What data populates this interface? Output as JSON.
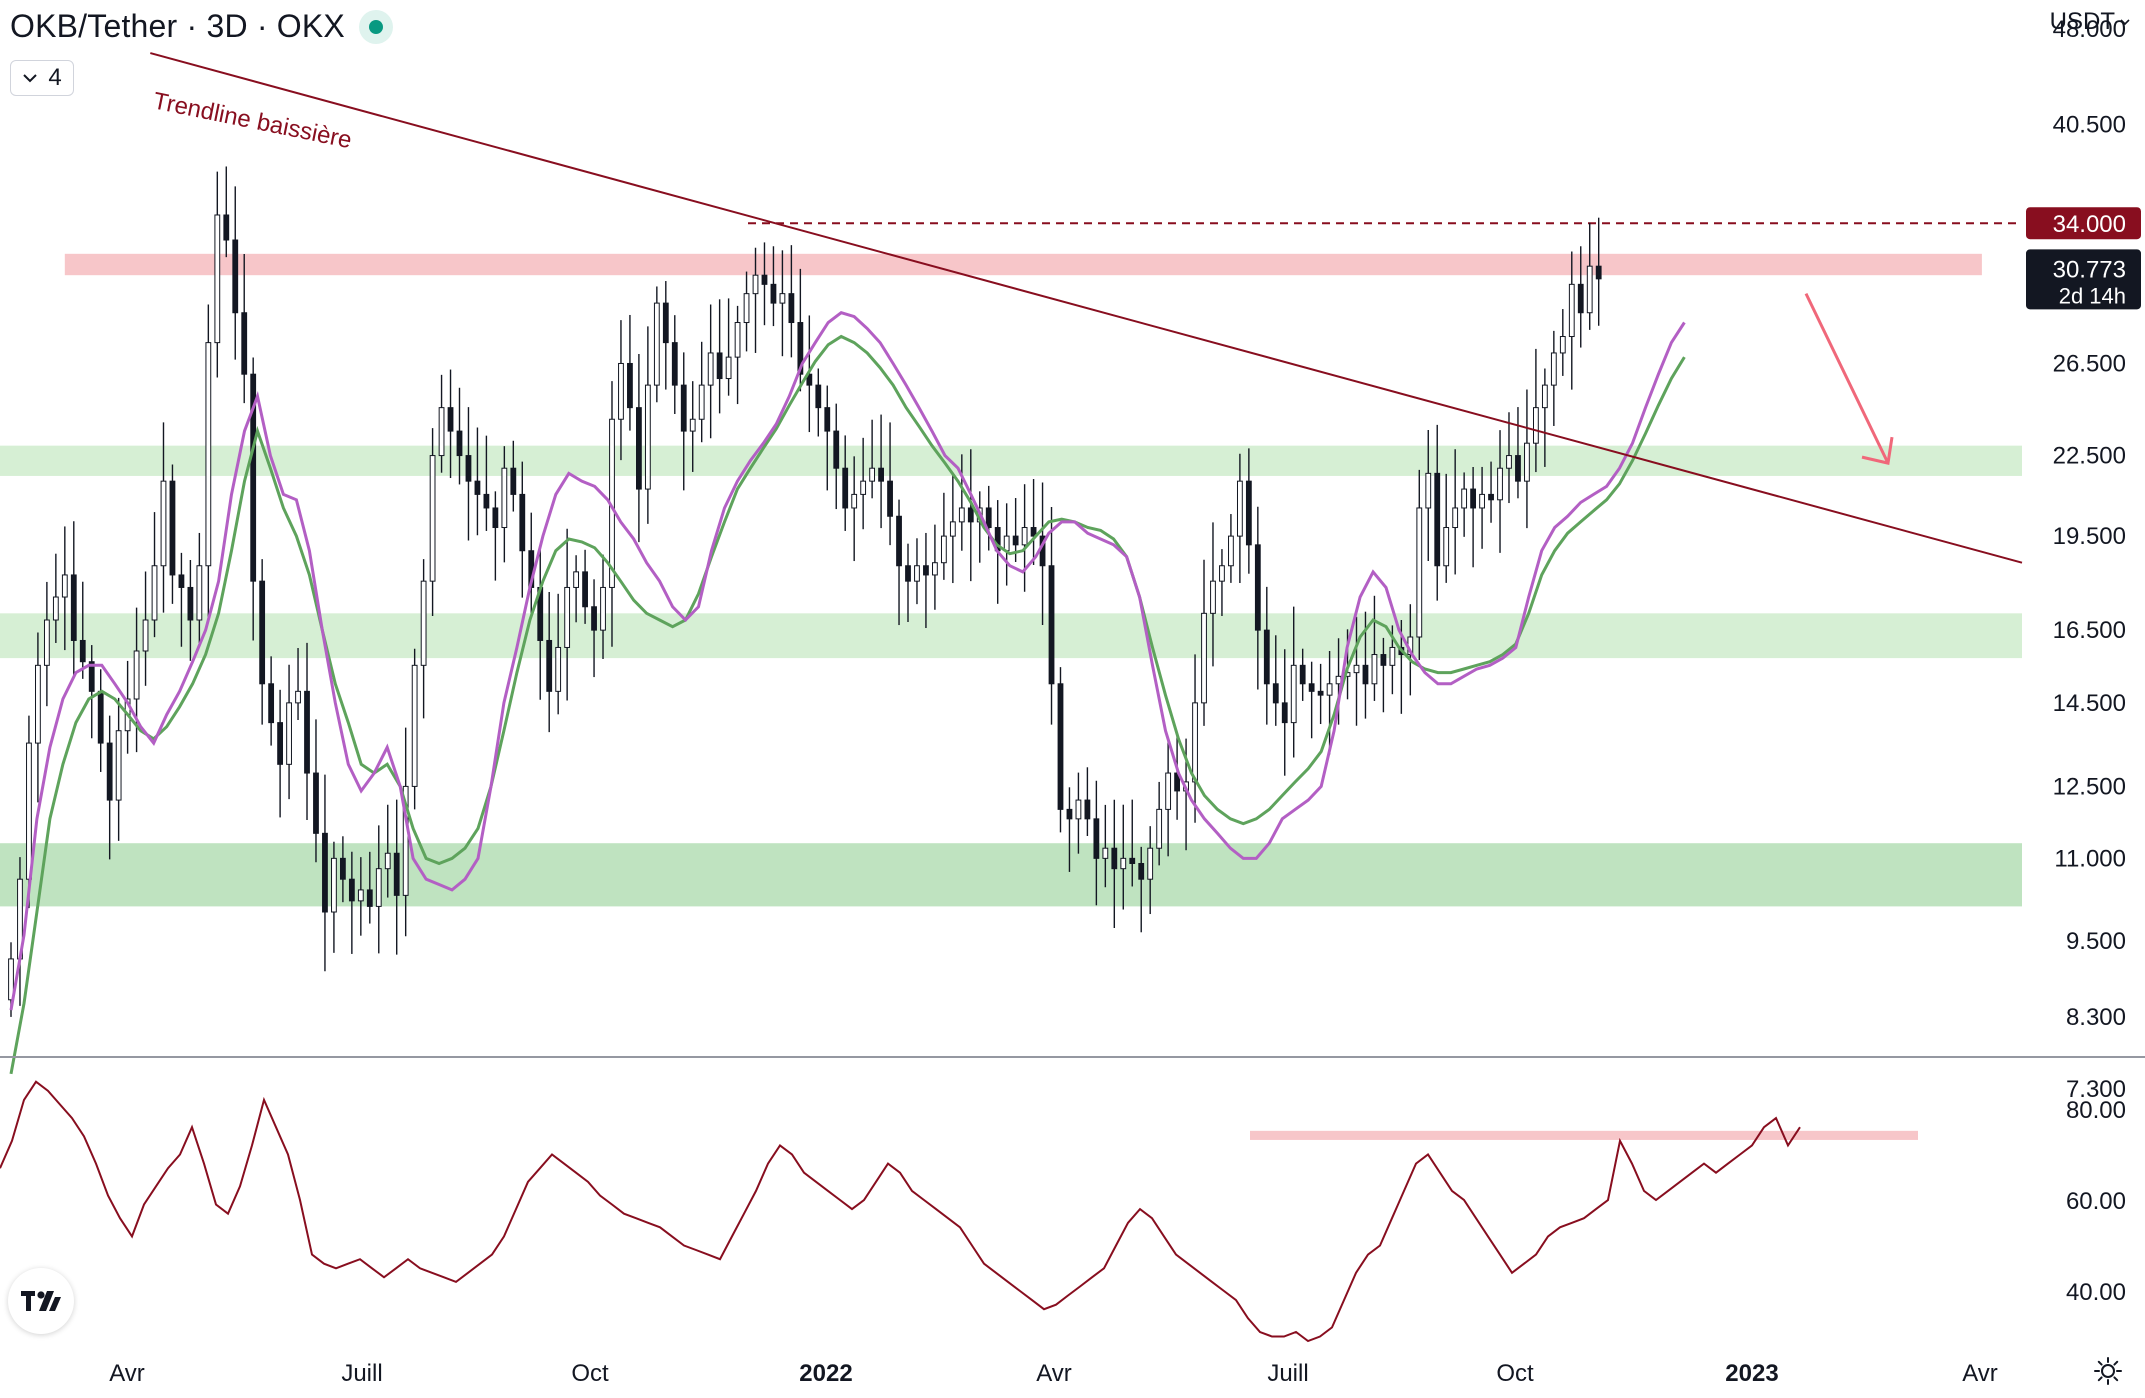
{
  "header": {
    "title": "OKB/Tether · 3D · OKX",
    "indicator_count": "4",
    "currency": "USDT"
  },
  "price_axis": {
    "ticks": [
      48,
      40.5,
      34,
      26.5,
      22.5,
      19.5,
      16.5,
      14.5,
      12.5,
      11,
      9.5,
      8.3,
      7.3
    ],
    "tick_labels": [
      "48.000",
      "40.500",
      "26.500",
      "22.500",
      "19.500",
      "16.500",
      "14.500",
      "12.500",
      "11.000",
      "9.500",
      "8.300",
      "7.300"
    ],
    "marked_level_label": "34.000",
    "marked_level_color": "#880e1f",
    "last_price_label": "30.773",
    "countdown_label": "2d 14h"
  },
  "rsi_axis": {
    "tick_labels": [
      "80.00",
      "60.00",
      "40.00"
    ],
    "ticks": [
      80,
      60,
      40
    ]
  },
  "time_axis": {
    "labels": [
      {
        "text": "Avr",
        "bold": false
      },
      {
        "text": "Juill",
        "bold": false
      },
      {
        "text": "Oct",
        "bold": false
      },
      {
        "text": "2022",
        "bold": true
      },
      {
        "text": "Avr",
        "bold": false
      },
      {
        "text": "Juill",
        "bold": false
      },
      {
        "text": "Oct",
        "bold": false
      },
      {
        "text": "2023",
        "bold": true
      },
      {
        "text": "Avr",
        "bold": false
      }
    ]
  },
  "annotations": {
    "trendline_label": "Trendline baissière"
  },
  "colors": {
    "candle": "#131722",
    "ema_short": "#b35fc4",
    "ema_long": "#5ea35c",
    "trendline": "#880e1f",
    "rsi_line": "#880e1f",
    "resistance_zone": "#f7c6c9",
    "support_zone": "#d6efd4",
    "strong_support_zone": "#bfe3c0",
    "arrow": "#f0687a"
  },
  "chart_data": [
    {
      "type": "candlestick",
      "title": "",
      "x_unit": "bar index (3-day candles)",
      "y_scale": "log",
      "ylim": [
        7.3,
        52
      ],
      "time_ticks": [
        {
          "label": "Avr",
          "bar": 20
        },
        {
          "label": "Juill",
          "bar": 50
        },
        {
          "label": "Oct",
          "bar": 81
        },
        {
          "label": "2022",
          "bar": 111
        },
        {
          "label": "Avr",
          "bar": 141
        },
        {
          "label": "Juill",
          "bar": 172
        },
        {
          "label": "Oct",
          "bar": 203
        },
        {
          "label": "2023",
          "bar": 234
        },
        {
          "label": "Avr",
          "bar": 264
        }
      ],
      "close": [
        9.2,
        10.6,
        13.5,
        15.5,
        16.8,
        17.5,
        18.2,
        16.2,
        15.6,
        14.8,
        13.5,
        12.2,
        13.8,
        14.6,
        15.9,
        16.8,
        18.5,
        21.5,
        18.2,
        17.8,
        16.8,
        18.5,
        27.5,
        34.5,
        33.0,
        29.0,
        26.0,
        18.0,
        15.0,
        14.0,
        13.0,
        14.5,
        14.8,
        12.8,
        11.5,
        10.0,
        11.0,
        10.6,
        10.2,
        10.4,
        10.1,
        10.8,
        11.1,
        10.3,
        12.5,
        15.5,
        18.0,
        22.5,
        24.5,
        23.5,
        22.5,
        21.5,
        21.0,
        20.5,
        19.8,
        22.0,
        21.0,
        19.0,
        17.8,
        16.2,
        14.8,
        16.0,
        17.8,
        18.3,
        17.2,
        16.5,
        17.8,
        24.0,
        26.5,
        24.5,
        21.2,
        25.5,
        29.5,
        27.5,
        25.5,
        23.5,
        24.0,
        25.5,
        27.0,
        25.8,
        26.8,
        28.5,
        30.0,
        31.0,
        30.5,
        29.5,
        30.0,
        28.5,
        26.0,
        25.5,
        24.5,
        23.5,
        22.0,
        20.5,
        21.0,
        21.5,
        22.0,
        21.5,
        20.2,
        18.5,
        18.0,
        18.5,
        18.2,
        18.6,
        19.5,
        20.0,
        20.5,
        20.0,
        20.5,
        19.8,
        19.0,
        19.5,
        19.2,
        19.8,
        19.5,
        18.5,
        15.0,
        12.0,
        11.8,
        12.2,
        11.8,
        11.0,
        11.2,
        10.8,
        11.0,
        10.9,
        10.6,
        11.2,
        12.0,
        12.8,
        12.4,
        12.6,
        14.5,
        17.0,
        18.0,
        18.5,
        19.5,
        21.5,
        19.2,
        16.5,
        15.0,
        14.5,
        14.0,
        15.5,
        15.0,
        14.8,
        14.7,
        15.0,
        15.2,
        15.3,
        15.5,
        15.0,
        15.8,
        15.5,
        16.0,
        15.8,
        16.3,
        20.5,
        21.8,
        18.5,
        19.8,
        20.5,
        21.2,
        20.5,
        21.0,
        20.8,
        22.0,
        22.5,
        21.5,
        23.0,
        24.5,
        25.5,
        27.0,
        27.8,
        30.5,
        29.0,
        31.5,
        30.8
      ],
      "ema_short": [
        8.4,
        9.6,
        11.8,
        13.4,
        14.6,
        15.3,
        15.5,
        15.5,
        15.0,
        14.5,
        13.9,
        13.5,
        14.2,
        14.8,
        15.6,
        16.5,
        18.0,
        21.0,
        23.5,
        25.0,
        22.5,
        21.0,
        20.8,
        19.0,
        16.5,
        14.5,
        13.0,
        12.4,
        12.8,
        13.4,
        12.5,
        11.0,
        10.6,
        10.5,
        10.4,
        10.6,
        11.0,
        12.5,
        14.5,
        16.0,
        17.8,
        19.5,
        21.0,
        21.8,
        21.5,
        21.3,
        20.8,
        20.0,
        19.4,
        18.6,
        18.0,
        17.2,
        16.8,
        17.2,
        19.0,
        20.5,
        21.5,
        22.3,
        23.0,
        23.8,
        25.0,
        26.5,
        27.5,
        28.5,
        29.0,
        28.8,
        28.2,
        27.5,
        26.5,
        25.5,
        24.5,
        23.5,
        22.5,
        22.0,
        21.0,
        20.0,
        19.0,
        18.5,
        18.3,
        18.8,
        19.6,
        20.0,
        20.0,
        19.6,
        19.4,
        19.2,
        18.8,
        17.5,
        15.5,
        13.8,
        12.8,
        12.2,
        11.8,
        11.5,
        11.2,
        11.0,
        11.0,
        11.3,
        11.8,
        12.0,
        12.2,
        12.5,
        13.8,
        16.0,
        17.5,
        18.3,
        17.8,
        16.5,
        15.8,
        15.3,
        15.0,
        15.0,
        15.2,
        15.4,
        15.5,
        15.7,
        16.0,
        17.5,
        19.0,
        19.8,
        20.2,
        20.7,
        21.0,
        21.3,
        22.0,
        23.0,
        24.5,
        26.0,
        27.5,
        28.5
      ],
      "ema_long": [
        7.5,
        8.5,
        10.0,
        11.8,
        13.0,
        14.0,
        14.6,
        14.8,
        14.6,
        14.2,
        13.8,
        13.6,
        13.9,
        14.4,
        15.0,
        15.8,
        17.0,
        19.0,
        21.5,
        23.5,
        22.0,
        20.5,
        19.5,
        18.2,
        16.5,
        15.0,
        14.0,
        13.0,
        12.8,
        13.0,
        12.5,
        11.6,
        11.0,
        10.9,
        11.0,
        11.2,
        11.6,
        12.5,
        13.8,
        15.3,
        16.8,
        18.0,
        19.0,
        19.4,
        19.3,
        19.1,
        18.6,
        18.0,
        17.4,
        17.0,
        16.8,
        16.6,
        16.8,
        17.6,
        18.8,
        20.0,
        21.2,
        22.0,
        22.8,
        23.6,
        24.6,
        25.6,
        26.6,
        27.4,
        27.8,
        27.5,
        27.0,
        26.3,
        25.5,
        24.5,
        23.7,
        22.9,
        22.2,
        21.5,
        20.7,
        19.8,
        19.2,
        18.9,
        19.0,
        19.5,
        20.0,
        20.1,
        20.0,
        19.8,
        19.7,
        19.4,
        18.8,
        17.5,
        16.0,
        14.7,
        13.6,
        12.8,
        12.3,
        12.0,
        11.8,
        11.7,
        11.8,
        12.0,
        12.3,
        12.6,
        12.9,
        13.3,
        14.2,
        15.4,
        16.3,
        16.8,
        16.6,
        16.0,
        15.6,
        15.4,
        15.3,
        15.3,
        15.4,
        15.5,
        15.6,
        15.8,
        16.1,
        17.0,
        18.2,
        19.0,
        19.6,
        20.0,
        20.4,
        20.8,
        21.4,
        22.3,
        23.4,
        24.6,
        25.8,
        26.8
      ],
      "zones": [
        {
          "role": "resistance",
          "from": 31.0,
          "to": 32.2,
          "x_start_bar": 2,
          "x_end_bar": 261
        },
        {
          "role": "support",
          "from": 21.7,
          "to": 22.9
        },
        {
          "role": "support",
          "from": 15.7,
          "to": 17.0
        },
        {
          "role": "support",
          "from": 10.1,
          "to": 11.3
        }
      ],
      "marked_level": 34.0,
      "last_price": 30.773,
      "trendline": {
        "start": {
          "bar": 17,
          "price": 46.0
        },
        "end": {
          "bar": 270,
          "price": 18.6
        }
      },
      "projection_arrow": {
        "start": {
          "bar": 240,
          "price": 30.0
        },
        "end": {
          "bar": 252,
          "price": 22.2
        }
      }
    },
    {
      "type": "line",
      "title": "",
      "series": [
        {
          "values": [
            67,
            73,
            82,
            86,
            84,
            81,
            78,
            74,
            68,
            61,
            56,
            52,
            59,
            63,
            67,
            70,
            76,
            68,
            59,
            57,
            63,
            72,
            82,
            76,
            70,
            60,
            48,
            46,
            45,
            46,
            47,
            45,
            43,
            45,
            47,
            45,
            44,
            43,
            42,
            44,
            46,
            48,
            52,
            58,
            64,
            67,
            70,
            68,
            66,
            64,
            61,
            59,
            57,
            56,
            55,
            54,
            52,
            50,
            49,
            48,
            47,
            52,
            57,
            62,
            68,
            72,
            70,
            66,
            64,
            62,
            60,
            58,
            60,
            64,
            68,
            66,
            62,
            60,
            58,
            56,
            54,
            50,
            46,
            44,
            42,
            40,
            38,
            36,
            37,
            39,
            41,
            43,
            45,
            50,
            55,
            58,
            56,
            52,
            48,
            46,
            44,
            42,
            40,
            38,
            34,
            31,
            30,
            30,
            31,
            29,
            30,
            32,
            38,
            44,
            48,
            50,
            56,
            62,
            68,
            70,
            66,
            62,
            60,
            56,
            52,
            48,
            44,
            46,
            48,
            52,
            54,
            55,
            56,
            58,
            60,
            73,
            68,
            62,
            60,
            62,
            64,
            66,
            68,
            66,
            68,
            70,
            72,
            76,
            78,
            72,
            76
          ]
        }
      ],
      "ylim": [
        28,
        90
      ],
      "yticks": [
        80,
        60,
        40
      ],
      "zones": [
        {
          "from": 73.2,
          "to": 75.2
        }
      ]
    }
  ]
}
